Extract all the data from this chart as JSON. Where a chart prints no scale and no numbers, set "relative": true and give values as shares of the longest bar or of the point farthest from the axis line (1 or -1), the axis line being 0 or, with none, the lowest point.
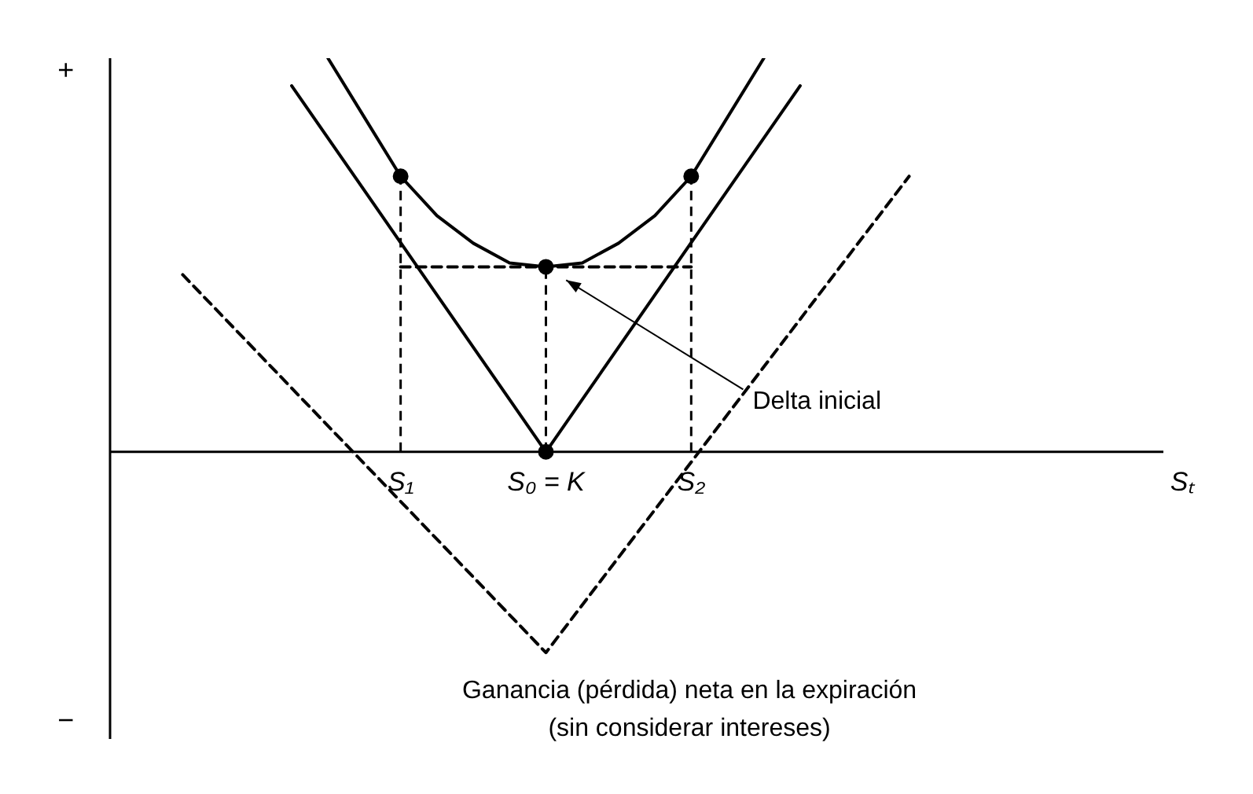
{
  "chart_data": {
    "type": "line",
    "relative": true,
    "xlabel": "Sₜ",
    "tick_labels": "x",
    "categories": [
      null,
      null,
      null,
      null,
      null,
      null,
      null,
      null,
      "S₁",
      null,
      null,
      null,
      "S₀ = K",
      null,
      null,
      null,
      "S₂",
      null,
      null,
      null,
      null,
      null,
      null,
      null,
      null,
      null,
      null,
      null,
      null,
      null
    ],
    "series": [
      {
        "color": "#000000",
        "line_style": "solid",
        "values": [
          null,
          null,
          null,
          null,
          null,
          0.93,
          null,
          null,
          null,
          null,
          null,
          null,
          0,
          null,
          null,
          null,
          null,
          null,
          null,
          0.93,
          null,
          null,
          null,
          null,
          null,
          null,
          null,
          null,
          null,
          null
        ]
      },
      {
        "color": "#000000",
        "line_style": "dashed",
        "values": [
          null,
          null,
          0.45,
          null,
          null,
          null,
          null,
          null,
          null,
          null,
          null,
          null,
          -0.51,
          null,
          null,
          null,
          null,
          null,
          null,
          null,
          null,
          null,
          0.7,
          null,
          null,
          null,
          null,
          null,
          null,
          null
        ]
      },
      {
        "color": "#000000",
        "line_style": "solid",
        "values": [
          null,
          null,
          null,
          null,
          null,
          null,
          1,
          0.85,
          0.7,
          0.6,
          0.53,
          0.48,
          0.47,
          0.48,
          0.53,
          0.6,
          0.7,
          0.85,
          1,
          null,
          null,
          null,
          null,
          null,
          null,
          null,
          null,
          null,
          null,
          null
        ]
      },
      {
        "color": "#000000",
        "line_style": "dashed",
        "values": [
          null,
          null,
          null,
          null,
          null,
          null,
          null,
          null,
          0.47,
          null,
          null,
          null,
          null,
          null,
          null,
          null,
          0.47,
          null,
          null,
          null,
          null,
          null,
          null,
          null,
          null,
          null,
          null,
          null,
          null,
          null
        ]
      },
      {
        "type": "lollipop",
        "color": "#000000",
        "line_style": "dashed",
        "marker": "circle",
        "values": [
          null,
          null,
          null,
          null,
          null,
          null,
          null,
          null,
          0.7,
          null,
          null,
          null,
          0.47,
          null,
          null,
          null,
          0.7,
          null,
          null,
          null,
          null,
          null,
          null,
          null,
          null,
          null,
          null,
          null,
          null,
          null
        ]
      },
      {
        "type": "scatter",
        "color": "#000000",
        "marker": "circle",
        "values": [
          null,
          null,
          null,
          null,
          null,
          null,
          null,
          null,
          null,
          null,
          null,
          null,
          0,
          null,
          null,
          null,
          null,
          null,
          null,
          null,
          null,
          null,
          null,
          null,
          null,
          null,
          null,
          null,
          null,
          null
        ]
      }
    ],
    "annotations": [
      "+",
      "−",
      "Delta inicial",
      "Ganancia (pérdida) neta en la expiración\n(sin considerar intereses)"
    ]
  }
}
